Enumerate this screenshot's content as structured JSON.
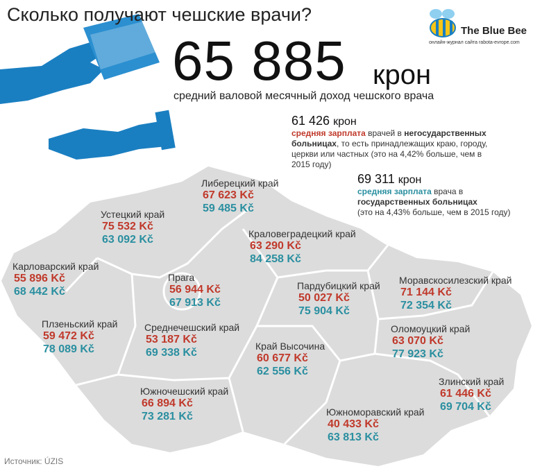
{
  "title": "Сколько получают чешские врачи?",
  "logo": {
    "name": "The Blue Bee",
    "tagline": "онлайн-журнал сайта rabota-evrope.com"
  },
  "headline": {
    "amount": "65 885",
    "unit": "крон",
    "caption": "средний валовой месячный доход чешского врача"
  },
  "private": {
    "amount": "61 426",
    "unit": "крон",
    "label": "средняя зарплата",
    "text1": " врачей в ",
    "bold": "негосударственных больницах",
    "text2": ", то есть принадлежащих краю, городу, церкви или частных (это на 4,42% больше, чем в 2015 году)"
  },
  "public": {
    "amount": "69 311",
    "unit": "крон",
    "label": "средняя зарплата",
    "text1": " врача в ",
    "bold": "государственных больницах",
    "text2": "(это на 4,43% больше, чем в 2015 году)"
  },
  "regions": [
    {
      "name": "Либерецкий край",
      "private": "67 623 Kč",
      "public": "59 485 Kč"
    },
    {
      "name": "Устецкий край",
      "private": "75 532 Kč",
      "public": "63 092 Kč"
    },
    {
      "name": "Краловеградецкий край",
      "private": "63 290 Kč",
      "public": "84 258 Kč"
    },
    {
      "name": "Карловарский край",
      "private": "55 896 Kč",
      "public": "68 442 Kč"
    },
    {
      "name": "Прага",
      "private": "56 944 Kč",
      "public": "67 913 Kč"
    },
    {
      "name": "Пардубицкий край",
      "private": "50 027 Kč",
      "public": "75 904 Kč"
    },
    {
      "name": "Моравскосилезский край",
      "private": "71 144 Kč",
      "public": "72 354 Kč"
    },
    {
      "name": "Плзеньский край",
      "private": "59 472 Kč",
      "public": "78 089 Kč"
    },
    {
      "name": "Среднечешский край",
      "private": "53 187 Kč",
      "public": "69 338 Kč"
    },
    {
      "name": "Оломоуцкий край",
      "private": "63 070 Kč",
      "public": "77 923 Kč"
    },
    {
      "name": "Край Высочина",
      "private": "60 677 Kč",
      "public": "62 556 Kč"
    },
    {
      "name": "Злинский край",
      "private": "61 446 Kč",
      "public": "69 704 Kč"
    },
    {
      "name": "Южночешский край",
      "private": "66 894 Kč",
      "public": "73 281 Kč"
    },
    {
      "name": "Южноморавский край",
      "private": "40 433 Kč",
      "public": "63 813 Kč"
    }
  ],
  "source": "Источник: ÚZIS"
}
